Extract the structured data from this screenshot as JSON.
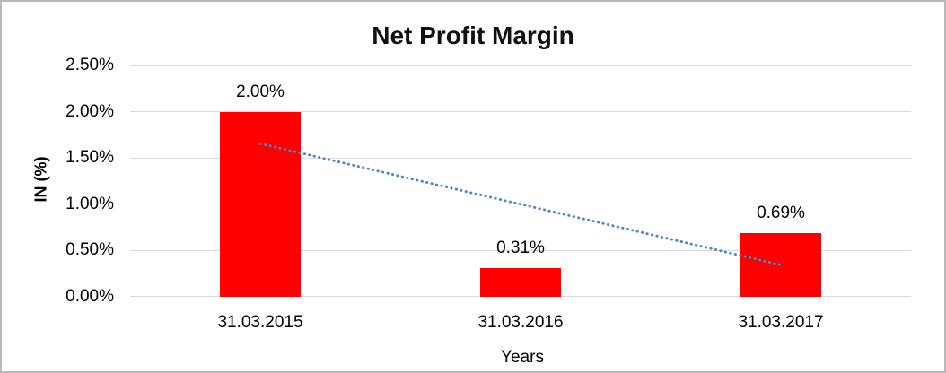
{
  "chart_data": {
    "type": "bar",
    "title": "Net Profit Margin",
    "xlabel": "Years",
    "ylabel": "IN (%)",
    "categories": [
      "31.03.2015",
      "31.03.2016",
      "31.03.2017"
    ],
    "values": [
      2.0,
      0.31,
      0.69
    ],
    "data_labels": [
      "2.00%",
      "0.31%",
      "0.69%"
    ],
    "ylim": [
      0,
      2.5
    ],
    "yticks": [
      0,
      0.5,
      1.0,
      1.5,
      2.0,
      2.5
    ],
    "ytick_labels": [
      "0.00%",
      "0.50%",
      "1.00%",
      "1.50%",
      "2.00%",
      "2.50%"
    ],
    "grid": true,
    "legend": "none",
    "bar_color": "#ff0000",
    "trendline": {
      "type": "linear",
      "style": "dotted",
      "color": "#4a86c8",
      "start": {
        "category_index": 0,
        "value": 1.655
      },
      "end": {
        "category_index": 2,
        "value": 0.345
      }
    }
  }
}
